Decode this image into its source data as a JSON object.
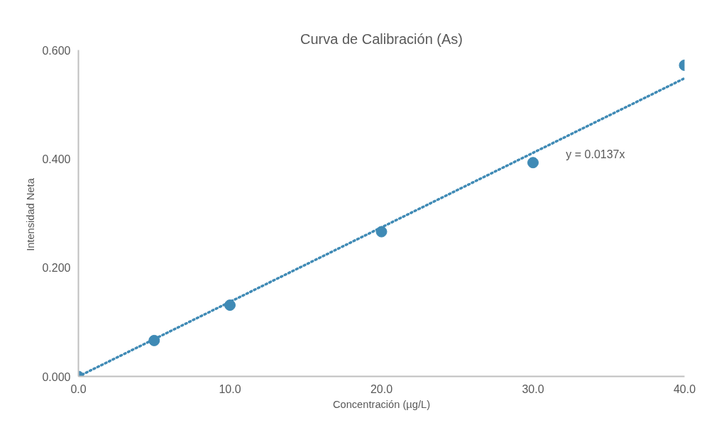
{
  "chart_data": {
    "type": "scatter",
    "title": "Curva de Calibración (As)",
    "xlabel": "Concentración (µg/L)",
    "ylabel": "Intensidad  Neta",
    "series": [
      {
        "color": "#3f8ab5",
        "x": [
          0,
          5,
          10,
          20,
          30,
          40
        ],
        "values": [
          0.0,
          0.066,
          0.131,
          0.266,
          0.393,
          0.572
        ],
        "marker": "circle"
      },
      {
        "type": "line",
        "color": "#3f8ab5",
        "x": [
          0,
          40
        ],
        "values": [
          0,
          0.548
        ],
        "line_style": "dotted"
      }
    ],
    "annotations": [
      "y = 0.0137x"
    ],
    "xlim": [
      0,
      40
    ],
    "ylim": [
      0,
      0.6
    ],
    "xticks": [
      {
        "value": 0,
        "label": "0.0"
      },
      {
        "value": 10,
        "label": "10.0"
      },
      {
        "value": 20,
        "label": "20.0"
      },
      {
        "value": 30,
        "label": "30.0"
      },
      {
        "value": 40,
        "label": "40.0"
      }
    ],
    "yticks": [
      {
        "value": 0,
        "label": "0.000"
      },
      {
        "value": 0.2,
        "label": "0.200"
      },
      {
        "value": 0.4,
        "label": "0.400"
      },
      {
        "value": 0.6,
        "label": "0.600"
      }
    ],
    "grid": false
  }
}
